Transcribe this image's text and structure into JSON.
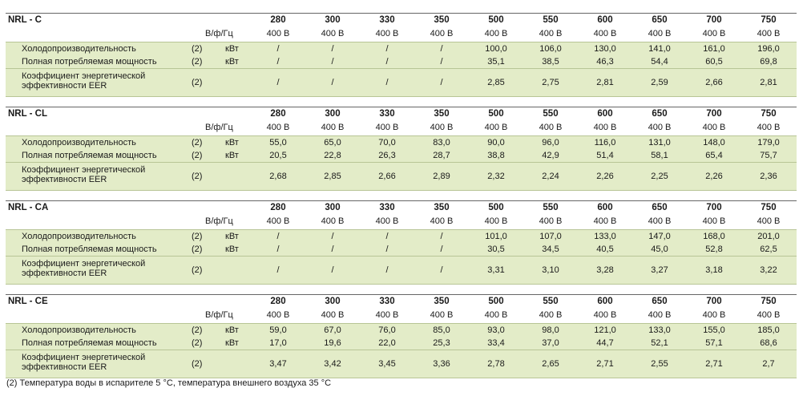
{
  "sections": [
    {
      "model": "NRL - C",
      "sizes": [
        "280",
        "300",
        "330",
        "350",
        "500",
        "550",
        "600",
        "650",
        "700",
        "750"
      ],
      "volt_label": "В/ф/Гц",
      "voltages": [
        "400 В",
        "400 В",
        "400 В",
        "400 В",
        "400 В",
        "400 В",
        "400 В",
        "400 В",
        "400 В",
        "400 В"
      ],
      "rows": [
        {
          "label": "Холодопроизводительность",
          "note": "(2)",
          "unit": "кВт",
          "values": [
            "/",
            "/",
            "/",
            "/",
            "100,0",
            "106,0",
            "130,0",
            "141,0",
            "161,0",
            "196,0"
          ]
        },
        {
          "label": "Полная потребляемая мощность",
          "note": "(2)",
          "unit": "кВт",
          "values": [
            "/",
            "/",
            "/",
            "/",
            "35,1",
            "38,5",
            "46,3",
            "54,4",
            "60,5",
            "69,8"
          ]
        },
        {
          "label": "Коэффициент энергетической",
          "label2": "эффективности EER",
          "note": "(2)",
          "unit": "",
          "values": [
            "/",
            "/",
            "/",
            "/",
            "2,85",
            "2,75",
            "2,81",
            "2,59",
            "2,66",
            "2,81"
          ]
        }
      ]
    },
    {
      "model": "NRL - CL",
      "sizes": [
        "280",
        "300",
        "330",
        "350",
        "500",
        "550",
        "600",
        "650",
        "700",
        "750"
      ],
      "volt_label": "В/ф/Гц",
      "voltages": [
        "400 В",
        "400 В",
        "400 В",
        "400 В",
        "400 В",
        "400 В",
        "400 В",
        "400 В",
        "400 В",
        "400 В"
      ],
      "rows": [
        {
          "label": "Холодопроизводительность",
          "note": "(2)",
          "unit": "кВт",
          "values": [
            "55,0",
            "65,0",
            "70,0",
            "83,0",
            "90,0",
            "96,0",
            "116,0",
            "131,0",
            "148,0",
            "179,0"
          ]
        },
        {
          "label": "Полная потребляемая мощность",
          "note": "(2)",
          "unit": "кВт",
          "values": [
            "20,5",
            "22,8",
            "26,3",
            "28,7",
            "38,8",
            "42,9",
            "51,4",
            "58,1",
            "65,4",
            "75,7"
          ]
        },
        {
          "label": "Коэффициент энергетической",
          "label2": "эффективности EER",
          "note": "(2)",
          "unit": "",
          "values": [
            "2,68",
            "2,85",
            "2,66",
            "2,89",
            "2,32",
            "2,24",
            "2,26",
            "2,25",
            "2,26",
            "2,36"
          ]
        }
      ]
    },
    {
      "model": "NRL - CA",
      "sizes": [
        "280",
        "300",
        "330",
        "350",
        "500",
        "550",
        "600",
        "650",
        "700",
        "750"
      ],
      "volt_label": "В/ф/Гц",
      "voltages": [
        "400 В",
        "400 В",
        "400 В",
        "400 В",
        "400 В",
        "400 В",
        "400 В",
        "400 В",
        "400 В",
        "400 В"
      ],
      "rows": [
        {
          "label": "Холодопроизводительность",
          "note": "(2)",
          "unit": "кВт",
          "values": [
            "/",
            "/",
            "/",
            "/",
            "101,0",
            "107,0",
            "133,0",
            "147,0",
            "168,0",
            "201,0"
          ]
        },
        {
          "label": "Полная потребляемая мощность",
          "note": "(2)",
          "unit": "кВт",
          "values": [
            "/",
            "/",
            "/",
            "/",
            "30,5",
            "34,5",
            "40,5",
            "45,0",
            "52,8",
            "62,5"
          ]
        },
        {
          "label": "Коэффициент энергетической",
          "label2": "эффективности EER",
          "note": "(2)",
          "unit": "",
          "values": [
            "/",
            "/",
            "/",
            "/",
            "3,31",
            "3,10",
            "3,28",
            "3,27",
            "3,18",
            "3,22"
          ]
        }
      ]
    },
    {
      "model": "NRL - CE",
      "sizes": [
        "280",
        "300",
        "330",
        "350",
        "500",
        "550",
        "600",
        "650",
        "700",
        "750"
      ],
      "volt_label": "В/ф/Гц",
      "voltages": [
        "400 В",
        "400 В",
        "400 В",
        "400 В",
        "400 В",
        "400 В",
        "400 В",
        "400 В",
        "400 В",
        "400 В"
      ],
      "rows": [
        {
          "label": "Холодопроизводительность",
          "note": "(2)",
          "unit": "кВт",
          "values": [
            "59,0",
            "67,0",
            "76,0",
            "85,0",
            "93,0",
            "98,0",
            "121,0",
            "133,0",
            "155,0",
            "185,0"
          ]
        },
        {
          "label": "Полная потребляемая мощность",
          "note": "(2)",
          "unit": "кВт",
          "values": [
            "17,0",
            "19,6",
            "22,0",
            "25,3",
            "33,4",
            "37,0",
            "44,7",
            "52,1",
            "57,1",
            "68,6"
          ]
        },
        {
          "label": "Коэффициент энергетической",
          "label2": "эффективности EER",
          "note": "(2)",
          "unit": "",
          "values": [
            "3,47",
            "3,42",
            "3,45",
            "3,36",
            "2,78",
            "2,65",
            "2,71",
            "2,55",
            "2,71",
            "2,7"
          ]
        }
      ]
    }
  ],
  "footnote": "(2) Температура воды в испарителе 5 °С, температура внешнего воздуха 35 °С"
}
